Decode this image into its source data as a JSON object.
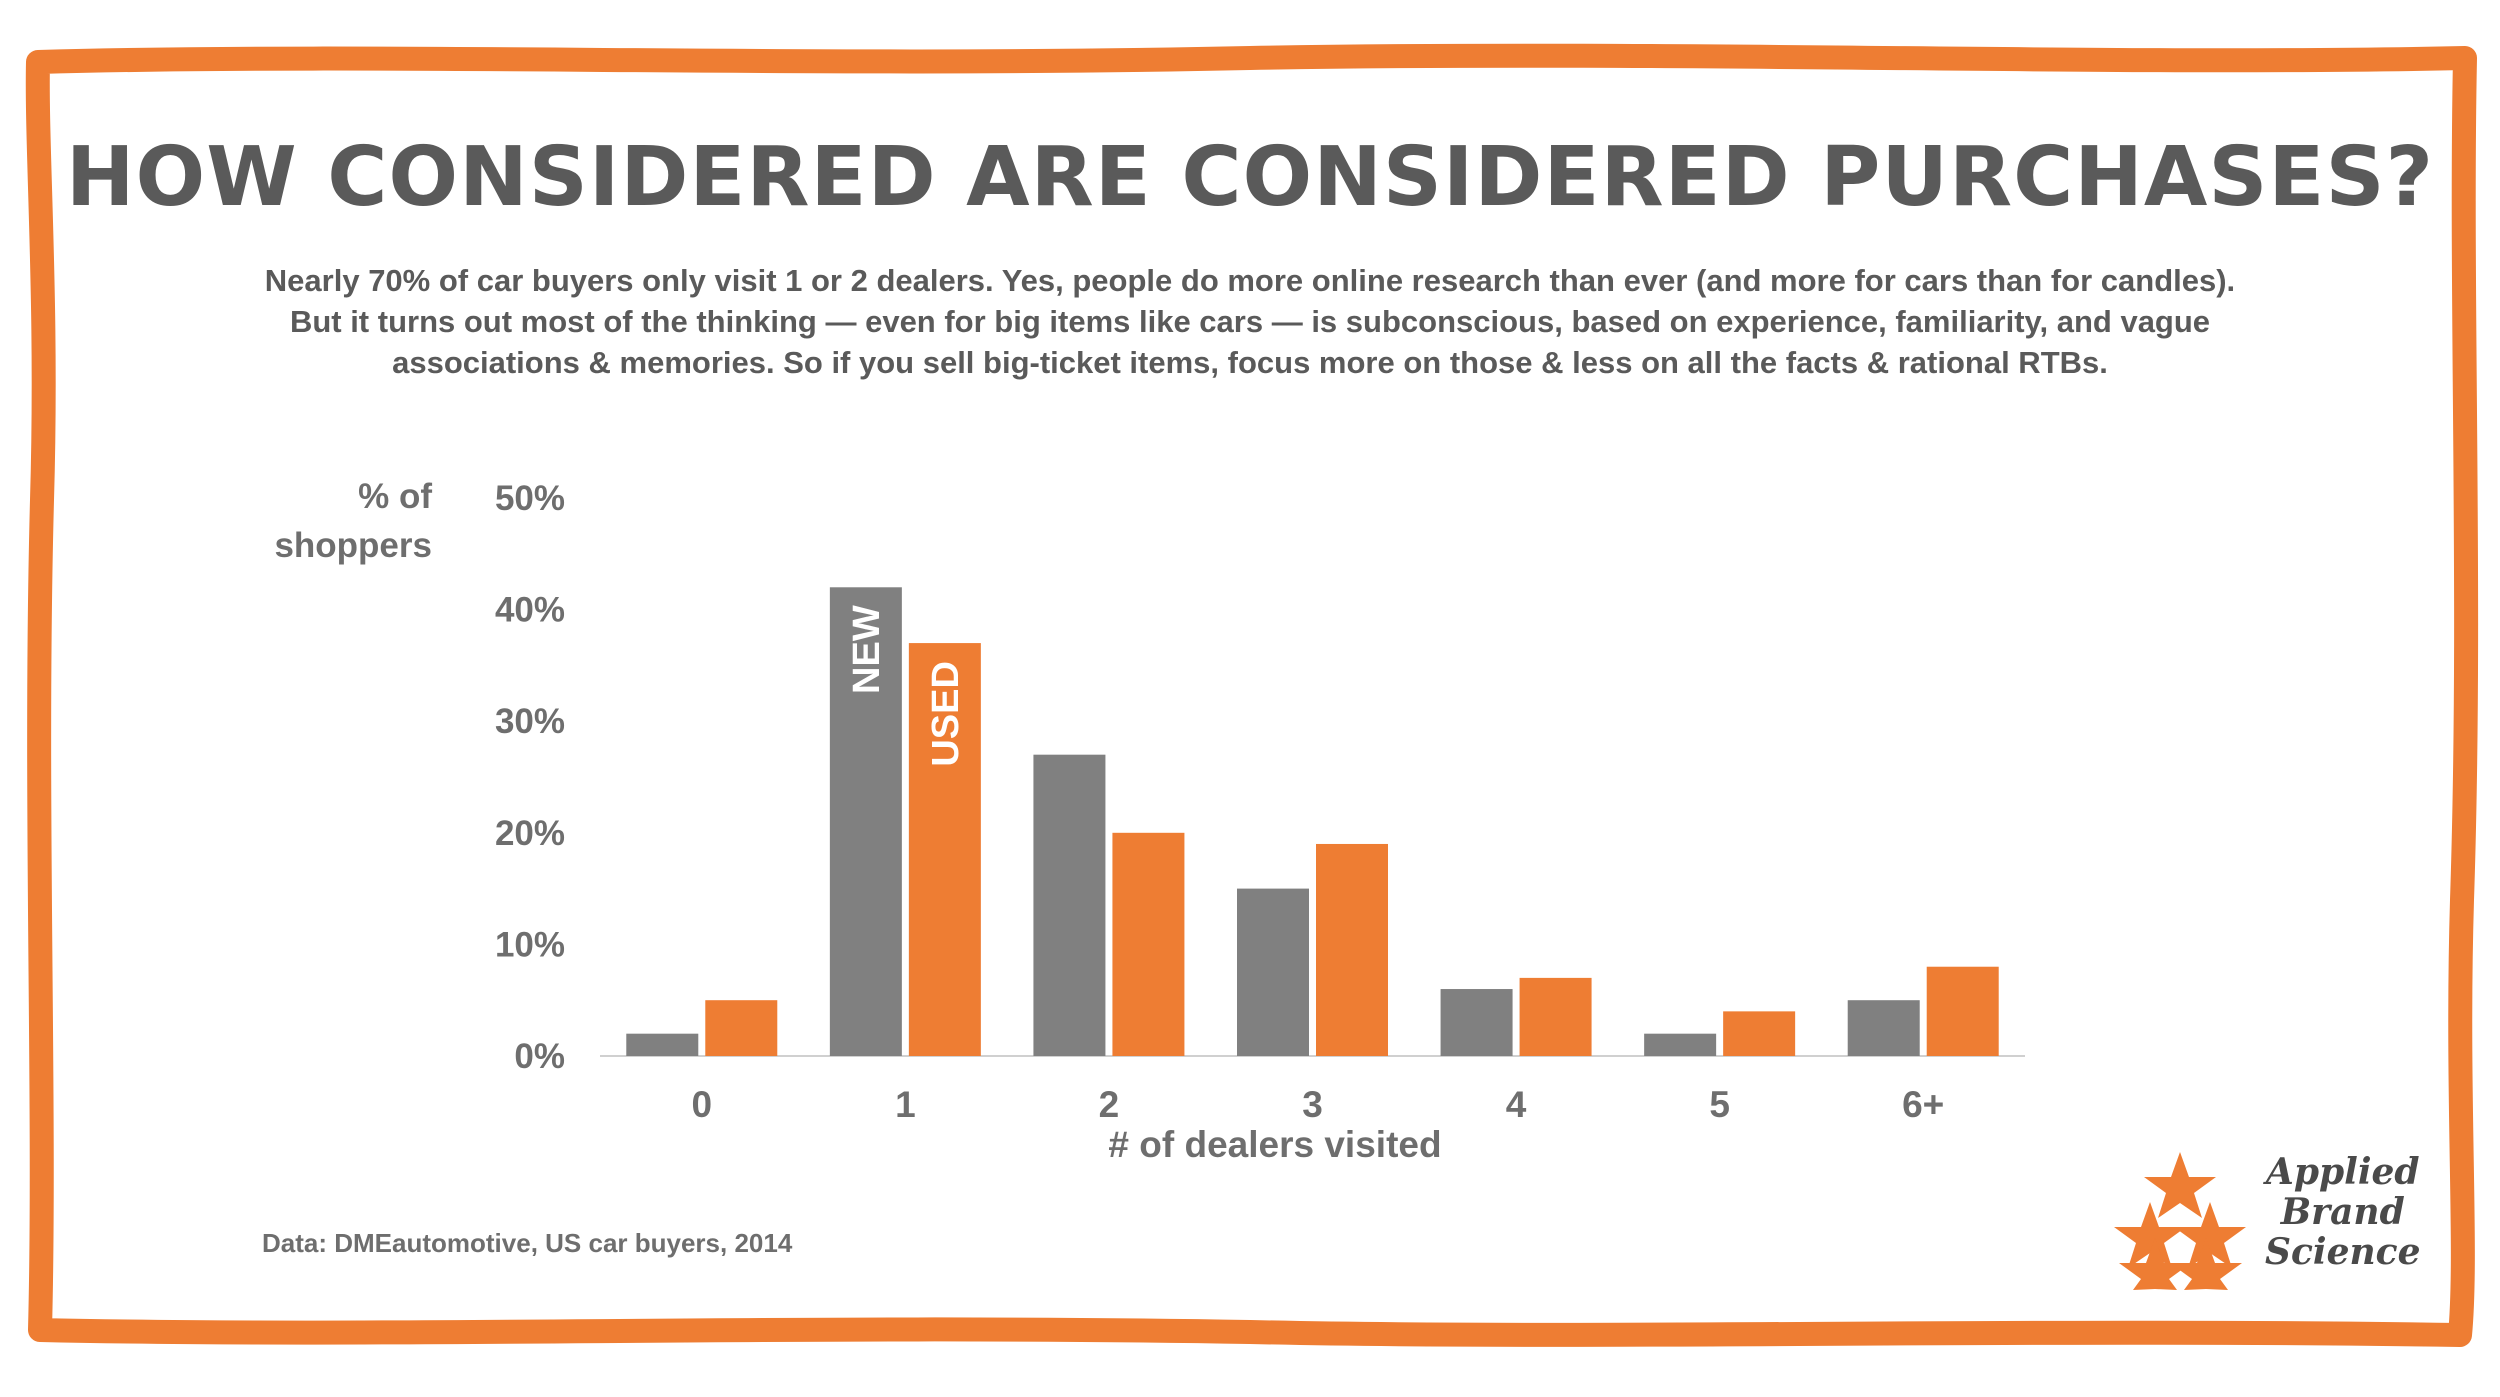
{
  "page": {
    "title": "HOW CONSIDERED ARE CONSIDERED PURCHASES?",
    "subtitle": "Nearly 70% of car buyers only visit 1 or 2 dealers. Yes, people do more online research than ever (and more for cars than for candles). But it turns out most of the thinking — even for big items like cars — is subconscious, based on experience, familiarity, and vague associations & memories. So if you sell big-ticket items, focus more on those & less on all the facts & rational RTBs.",
    "source": "Data: DMEautomotive, US car buyers, 2014"
  },
  "logo": {
    "line1": "Applied",
    "line2": "Brand",
    "line3": "Science",
    "icon": "stars-icon"
  },
  "colors": {
    "frame": "#ee7d33",
    "new": "#808080",
    "used": "#ee7d33",
    "text": "#5a5a5a",
    "axis": "#d0d0d0"
  },
  "chart_data": {
    "type": "bar",
    "title": "",
    "xlabel": "# of dealers visited",
    "ylabel": "% of shoppers",
    "ylabel_lines": [
      "% of",
      "shoppers"
    ],
    "categories": [
      "0",
      "1",
      "2",
      "3",
      "4",
      "5",
      "6+"
    ],
    "ylim": [
      0,
      50
    ],
    "yticks": [
      0,
      10,
      20,
      30,
      40,
      50
    ],
    "ytick_labels": [
      "0%",
      "10%",
      "20%",
      "30%",
      "40%",
      "50%"
    ],
    "series": [
      {
        "name": "NEW",
        "values": [
          2,
          42,
          27,
          15,
          6,
          2,
          5
        ]
      },
      {
        "name": "USED",
        "values": [
          5,
          37,
          20,
          19,
          7,
          4,
          8
        ]
      }
    ],
    "grid": false,
    "legend": "inside-bars"
  }
}
